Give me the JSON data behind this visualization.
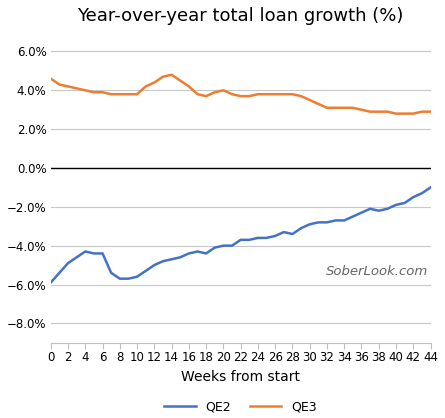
{
  "title": "Year-over-year total loan growth (%)",
  "xlabel": "Weeks from start",
  "watermark": "SoberLook.com",
  "xlim": [
    0,
    44
  ],
  "ylim": [
    -0.09,
    0.07
  ],
  "yticks": [
    -0.08,
    -0.06,
    -0.04,
    -0.02,
    0.0,
    0.02,
    0.04,
    0.06
  ],
  "xticks": [
    0,
    2,
    4,
    6,
    8,
    10,
    12,
    14,
    16,
    18,
    20,
    22,
    24,
    26,
    28,
    30,
    32,
    34,
    36,
    38,
    40,
    42,
    44
  ],
  "qe2_color": "#4472C4",
  "qe3_color": "#ED7D31",
  "legend_labels": [
    "QE2",
    "QE3"
  ],
  "qe2_x": [
    0,
    1,
    2,
    3,
    4,
    5,
    6,
    7,
    8,
    9,
    10,
    11,
    12,
    13,
    14,
    15,
    16,
    17,
    18,
    19,
    20,
    21,
    22,
    23,
    24,
    25,
    26,
    27,
    28,
    29,
    30,
    31,
    32,
    33,
    34,
    35,
    36,
    37,
    38,
    39,
    40,
    41,
    42,
    43,
    44
  ],
  "qe2_y": [
    -0.059,
    -0.054,
    -0.049,
    -0.046,
    -0.043,
    -0.044,
    -0.044,
    -0.054,
    -0.057,
    -0.057,
    -0.056,
    -0.053,
    -0.05,
    -0.048,
    -0.047,
    -0.046,
    -0.044,
    -0.043,
    -0.044,
    -0.041,
    -0.04,
    -0.04,
    -0.037,
    -0.037,
    -0.036,
    -0.036,
    -0.035,
    -0.033,
    -0.034,
    -0.031,
    -0.029,
    -0.028,
    -0.028,
    -0.027,
    -0.027,
    -0.025,
    -0.023,
    -0.021,
    -0.022,
    -0.021,
    -0.019,
    -0.018,
    -0.015,
    -0.013,
    -0.01
  ],
  "qe3_x": [
    0,
    1,
    2,
    3,
    4,
    5,
    6,
    7,
    8,
    9,
    10,
    11,
    12,
    13,
    14,
    15,
    16,
    17,
    18,
    19,
    20,
    21,
    22,
    23,
    24,
    25,
    26,
    27,
    28,
    29,
    30,
    31,
    32,
    33,
    34,
    35,
    36,
    37,
    38,
    39,
    40,
    41,
    42,
    43,
    44
  ],
  "qe3_y": [
    0.046,
    0.043,
    0.042,
    0.041,
    0.04,
    0.039,
    0.039,
    0.038,
    0.038,
    0.038,
    0.038,
    0.042,
    0.044,
    0.047,
    0.048,
    0.045,
    0.042,
    0.038,
    0.037,
    0.039,
    0.04,
    0.038,
    0.037,
    0.037,
    0.038,
    0.038,
    0.038,
    0.038,
    0.038,
    0.037,
    0.035,
    0.033,
    0.031,
    0.031,
    0.031,
    0.031,
    0.03,
    0.029,
    0.029,
    0.029,
    0.028,
    0.028,
    0.028,
    0.029,
    0.029
  ],
  "background_color": "#ffffff",
  "grid_color": "#c8c8c8",
  "zero_line_color": "#000000",
  "spine_color": "#c0c0c0",
  "tick_label_fontsize": 8.5,
  "title_fontsize": 13,
  "xlabel_fontsize": 10,
  "watermark_fontsize": 9.5,
  "legend_fontsize": 9
}
